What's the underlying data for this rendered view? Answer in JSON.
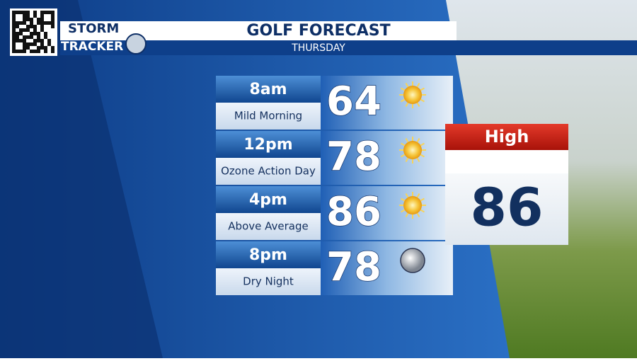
{
  "header": {
    "logo_top": "STORM",
    "logo_bottom": "TRACKER",
    "title": "GOLF FORECAST",
    "subtitle": "THURSDAY"
  },
  "rows": [
    {
      "time": "8am",
      "description": "Mild Morning",
      "temp": 64,
      "icon": "sun"
    },
    {
      "time": "12pm",
      "description": "Ozone Action Day",
      "temp": 78,
      "icon": "sun"
    },
    {
      "time": "4pm",
      "description": "Above Average",
      "temp": 86,
      "icon": "sun"
    },
    {
      "time": "8pm",
      "description": "Dry Night",
      "temp": 78,
      "icon": "moon"
    }
  ],
  "high": {
    "label": "High",
    "value": 86
  }
}
